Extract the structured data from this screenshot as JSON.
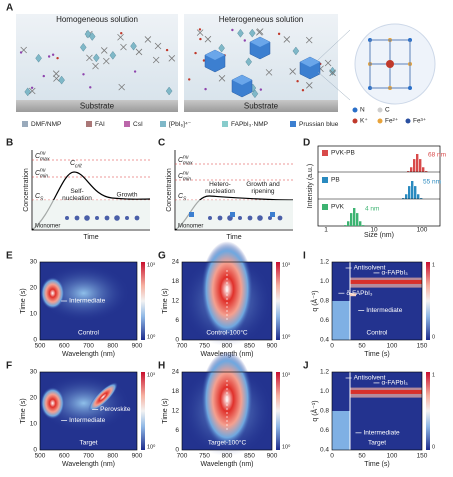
{
  "A": {
    "label": "A",
    "homogeneous": "Homogeneous solution",
    "heterogeneous": "Heterogeneous solution",
    "substrate": [
      "Substrate",
      "Substrate"
    ],
    "legend": [
      "DMF/NMP",
      "FAI",
      "CsI",
      "[PbI₆]⁴⁻",
      "FAPbI₃·NMP",
      "Prussian blue"
    ],
    "crystal_legend": [
      "N",
      "C",
      "K⁺",
      "Fe²⁺",
      "Fe³⁺"
    ]
  },
  "B": {
    "label": "B",
    "y_label": "Concentration",
    "x_label": "Time",
    "levels": [
      {
        "base": "C",
        "sup": "nu",
        "sub": "max"
      },
      {
        "base": "C",
        "sup": "nu",
        "sub": "min"
      },
      {
        "base": "C",
        "sub": "crit"
      },
      {
        "base": "C",
        "sub": "S"
      }
    ],
    "regions": [
      [
        "Self-",
        "nucleation"
      ],
      [
        "Growth"
      ]
    ],
    "monomer": "Monomer"
  },
  "C": {
    "label": "C",
    "y_label": "Concentration",
    "x_label": "Time",
    "levels": [
      {
        "base": "C",
        "sup": "nu",
        "sub": "max"
      },
      {
        "base": "C",
        "sup": "nu",
        "sub": "min"
      },
      {
        "base": "C",
        "sub": "S"
      }
    ],
    "regions": [
      [
        "Hetero-",
        "nucleation"
      ],
      [
        "Growth and",
        "ripening"
      ]
    ],
    "monomer": "Monomer"
  },
  "D": {
    "label": "D",
    "series": [
      {
        "name": "PVK-PB",
        "annotation": "68 nm"
      },
      {
        "name": "PB",
        "annotation": "55 nm"
      },
      {
        "name": "PVK",
        "annotation": "4 nm"
      }
    ],
    "x_label": "Size (nm)",
    "y_label": "Intensity (a.u.)",
    "xticks": [
      "1",
      "10",
      "100"
    ]
  },
  "E": {
    "label": "E",
    "y_label": "Time (s)",
    "x_label": "Wavelength (nm)",
    "xticks": [
      "500",
      "600",
      "700",
      "800",
      "900"
    ],
    "yticks": [
      "0",
      "10",
      "20",
      "30"
    ],
    "annotations": [
      "Intermediate"
    ],
    "sample": "Control",
    "colorbar": [
      "10³",
      "10⁰"
    ]
  },
  "F": {
    "label": "F",
    "y_label": "Time (s)",
    "x_label": "Wavelength (nm)",
    "xticks": [
      "500",
      "600",
      "700",
      "800",
      "900"
    ],
    "yticks": [
      "0",
      "10",
      "20",
      "30"
    ],
    "annotations": [
      "Perovskite",
      "Intermediate"
    ],
    "sample": "Target",
    "colorbar": [
      "10³",
      "10⁰"
    ]
  },
  "G": {
    "label": "G",
    "y_label": "Time (s)",
    "x_label": "Wavelength (nm)",
    "xticks": [
      "700",
      "750",
      "800",
      "850",
      "900"
    ],
    "yticks": [
      "0",
      "6",
      "12",
      "18",
      "24"
    ],
    "sample": "Control-100°C",
    "colorbar": [
      "10³",
      "10⁰"
    ]
  },
  "H": {
    "label": "H",
    "y_label": "Time (s)",
    "x_label": "Wavelength (nm)",
    "xticks": [
      "700",
      "750",
      "800",
      "850",
      "900"
    ],
    "yticks": [
      "0",
      "6",
      "12",
      "18",
      "24"
    ],
    "sample": "Target-100°C",
    "colorbar": [
      "10³",
      "10⁰"
    ]
  },
  "I": {
    "label": "I",
    "y_label": "q (Å⁻¹)",
    "x_label": "Time (s)",
    "xticks": [
      "0",
      "50",
      "100",
      "150"
    ],
    "yticks": [
      "0.4",
      "0.6",
      "0.8",
      "1.0",
      "1.2"
    ],
    "annotations": [
      "Antisolvent",
      "α-FAPbI₃",
      "δ-FAPbI₃",
      "Intermediate"
    ],
    "sample": "Control",
    "colorbar": [
      "1",
      "0"
    ]
  },
  "J": {
    "label": "J",
    "y_label": "q (Å⁻¹)",
    "x_label": "Time (s)",
    "xticks": [
      "0",
      "50",
      "100",
      "150"
    ],
    "yticks": [
      "0.4",
      "0.6",
      "0.8",
      "1.0",
      "1.2"
    ],
    "annotations": [
      "Antisolvent",
      "α-FAPbI₃",
      "Intermediate"
    ],
    "sample": "Target",
    "colorbar": [
      "1",
      "0"
    ]
  }
}
